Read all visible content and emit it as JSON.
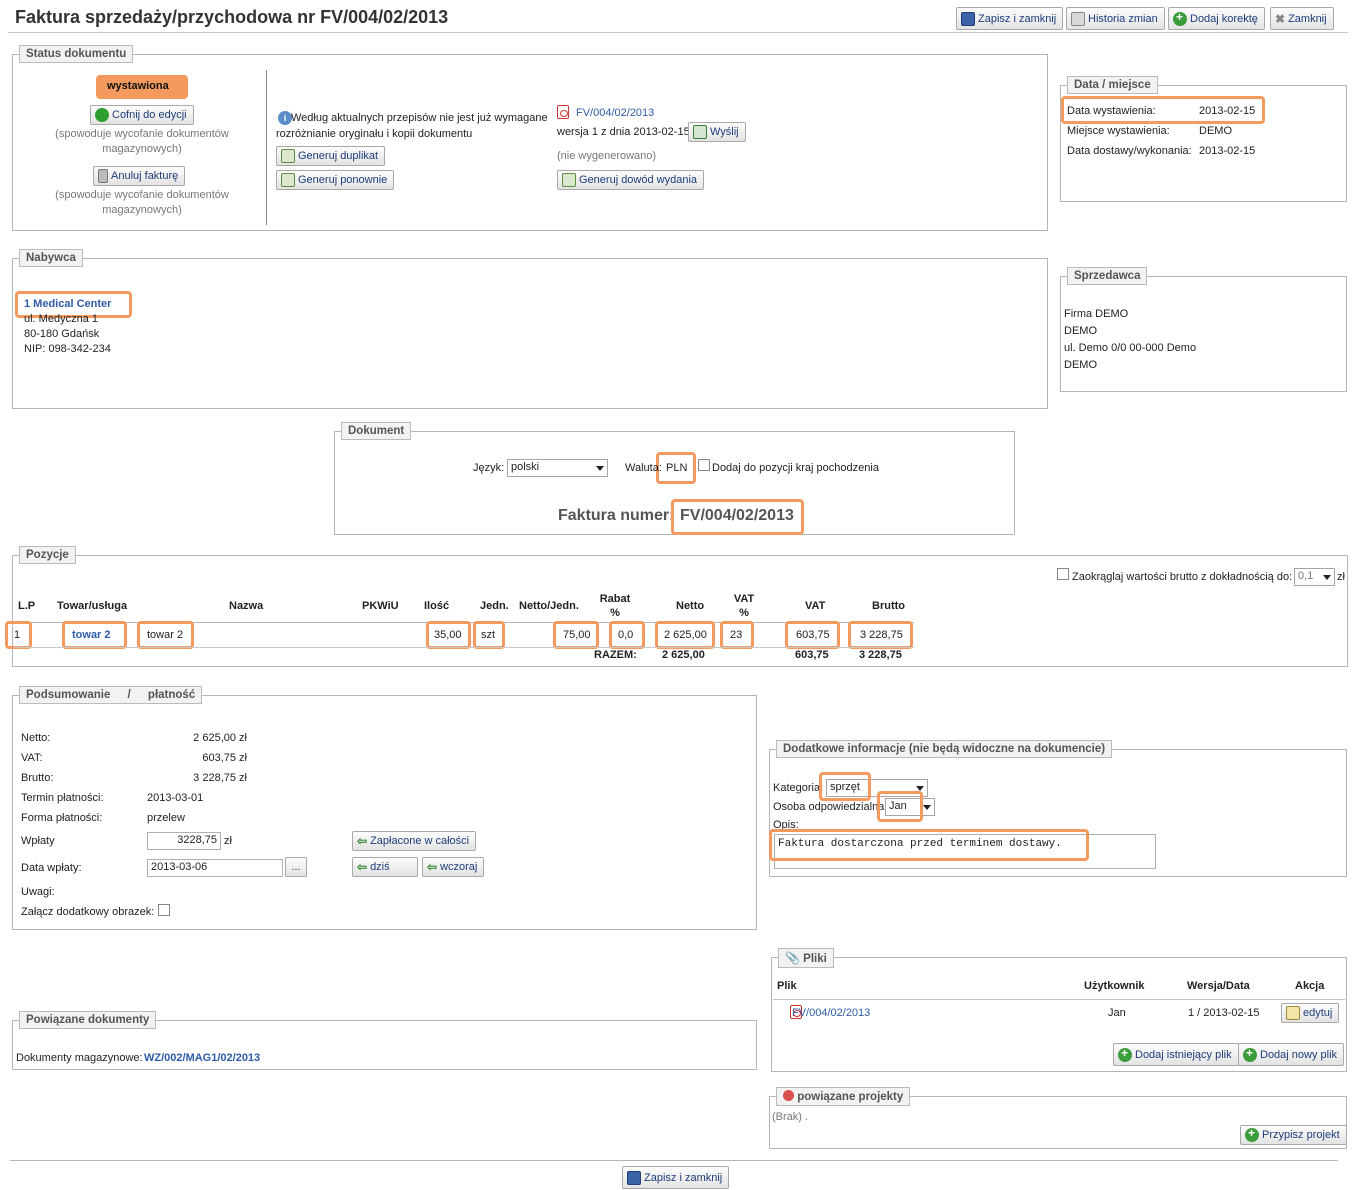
{
  "window": {
    "title": "Faktura sprzedaży/przychodowa nr FV/004/02/2013"
  },
  "toolbar": {
    "save": "Zapisz i zamknij",
    "history": "Historia zmian",
    "correction": "Dodaj korektę",
    "close": "Zamknij"
  },
  "status": {
    "legend": "Status dokumentu",
    "state": "wystawiona",
    "revert_btn": "Cofnij do edycji",
    "revert_note": "(spowoduje wycofanie dokumentów magazynowych)",
    "cancel_btn": "Anuluj fakturę",
    "cancel_note": "(spowoduje wycofanie dokumentów magazynowych)",
    "info_text": "Według aktualnych przepisów nie jest już wymagane rozróżnianie oryginału i kopii dokumentu",
    "duplicate_btn": "Generuj duplikat",
    "regenerate_btn": "Generuj ponownie",
    "pdf_link": "FV/004/02/2013",
    "version_text": "wersja 1 z dnia 2013-02-15",
    "send_btn": "Wyślij",
    "not_generated": "(nie wygenerowano)",
    "generate_proof_btn": "Generuj dowód wydania"
  },
  "date_place": {
    "legend": "Data / miejsce",
    "issue_label": "Data wystawienia:",
    "issue_value": "2013-02-15",
    "place_label": "Miejsce wystawienia:",
    "place_value": "DEMO",
    "delivery_label": "Data dostawy/wykonania:",
    "delivery_value": "2013-02-15"
  },
  "buyer": {
    "legend": "Nabywca",
    "name": "1 Medical Center",
    "street": "ul. Medyczna 1",
    "city": "80-180 Gdańsk",
    "nip": "NIP: 098-342-234"
  },
  "seller": {
    "legend": "Sprzedawca",
    "line1": "Firma DEMO",
    "line2": "DEMO",
    "line3": "ul. Demo 0/0 00-000 Demo",
    "line4": "DEMO"
  },
  "document": {
    "legend": "Dokument",
    "language_label": "Język:",
    "language_value": "polski",
    "currency_label": "Waluta:",
    "currency_value": "PLN",
    "origin_label": "Dodaj do pozycji kraj pochodzenia",
    "invoice_label": "Faktura numer:",
    "invoice_number": "FV/004/02/2013"
  },
  "positions": {
    "legend": "Pozycje",
    "rounding_label": "Zaokrąglaj wartości brutto z dokładnością do:",
    "rounding_value": "0,1",
    "rounding_unit": "zł",
    "headers": {
      "lp": "L.P",
      "item": "Towar/usługa",
      "name": "Nazwa",
      "pkwiu": "PKWiU",
      "qty": "Ilość",
      "unit": "Jedn.",
      "net_unit": "Netto/Jedn.",
      "discount": "Rabat %",
      "net": "Netto",
      "vat_pct": "VAT %",
      "vat": "VAT",
      "gross": "Brutto"
    },
    "row": {
      "lp": "1",
      "item": "towar 2",
      "name": "towar 2",
      "qty": "35,00",
      "unit": "szt",
      "net_unit": "75,00",
      "discount": "0,0",
      "net": "2 625,00",
      "vat_pct": "23",
      "vat": "603,75",
      "gross": "3 228,75"
    },
    "total": {
      "label": "RAZEM:",
      "net": "2 625,00",
      "vat": "603,75",
      "gross": "3 228,75"
    }
  },
  "summary": {
    "legend": "Podsumowanie / płatność",
    "net_label": "Netto:",
    "net_value": "2 625,00 zł",
    "vat_label": "VAT:",
    "vat_value": "603,75 zł",
    "gross_label": "Brutto:",
    "gross_value": "3 228,75 zł",
    "term_label": "Termin płatności:",
    "term_value": "2013-03-01",
    "form_label": "Forma płatności:",
    "form_value": "przelew",
    "paid_label": "Wpłaty",
    "paid_value": "3228,75",
    "paid_unit": "zł",
    "paid_full_btn": "Zapłacone w całości",
    "date_label": "Data wpłaty:",
    "date_value": "2013-03-06",
    "date_btn": "...",
    "today_btn": "dziś",
    "yesterday_btn": "wczoraj",
    "notes_label": "Uwagi:",
    "image_label": "Załącz dodatkowy obrazek:"
  },
  "extra": {
    "legend": "Dodatkowe informacje (nie będą widoczne na dokumencie)",
    "category_label": "Kategoria:",
    "category_value": "sprzęt",
    "person_label": "Osoba odpowiedzialna:",
    "person_value": "Jan",
    "desc_label": "Opis:",
    "desc_value": "Faktura dostarczona przed terminem dostawy."
  },
  "related": {
    "legend": "Powiązane dokumenty",
    "label": "Dokumenty magazynowe:",
    "link": "WZ/002/MAG1/02/2013"
  },
  "files": {
    "legend": "Pliki",
    "headers": {
      "file": "Plik",
      "user": "Użytkownik",
      "version": "Wersja/Data",
      "action": "Akcja"
    },
    "row": {
      "file": "FV/004/02/2013",
      "user": "Jan",
      "version": "1 / 2013-02-15",
      "action": "edytuj"
    },
    "add_existing_btn": "Dodaj istniejący plik",
    "add_new_btn": "Dodaj nowy plik"
  },
  "projects": {
    "legend": "powiązane projekty",
    "empty": "(Brak) .",
    "assign_btn": "Przypisz projekt"
  },
  "footer": {
    "save": "Zapisz i zamknij"
  }
}
